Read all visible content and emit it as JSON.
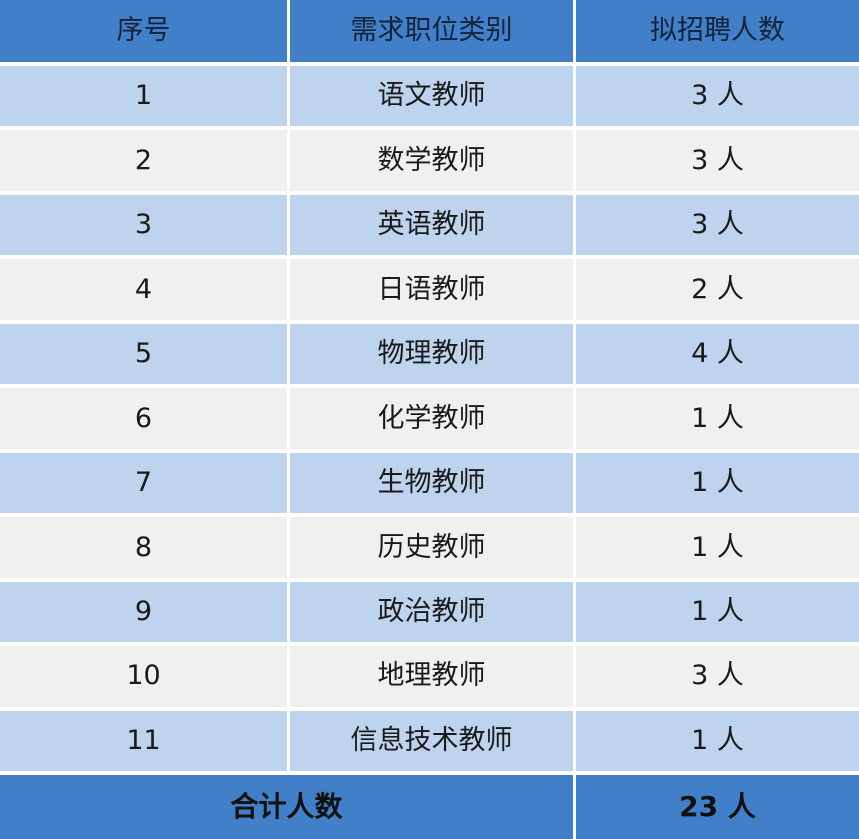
{
  "table": {
    "headers": [
      "序号",
      "需求职位类别",
      "拟招聘人数"
    ],
    "rows": [
      {
        "seq": "1",
        "category": "语文教师",
        "count": "3 人"
      },
      {
        "seq": "2",
        "category": "数学教师",
        "count": "3 人"
      },
      {
        "seq": "3",
        "category": "英语教师",
        "count": "3 人"
      },
      {
        "seq": "4",
        "category": "日语教师",
        "count": "2 人"
      },
      {
        "seq": "5",
        "category": "物理教师",
        "count": "4 人"
      },
      {
        "seq": "6",
        "category": "化学教师",
        "count": "1 人"
      },
      {
        "seq": "7",
        "category": "生物教师",
        "count": "1 人"
      },
      {
        "seq": "8",
        "category": "历史教师",
        "count": "1 人"
      },
      {
        "seq": "9",
        "category": "政治教师",
        "count": "1 人"
      },
      {
        "seq": "10",
        "category": "地理教师",
        "count": "3 人"
      },
      {
        "seq": "11",
        "category": "信息技术教师",
        "count": "1 人"
      }
    ],
    "footer": {
      "label": "合计人数",
      "value": "23 人"
    }
  },
  "colors": {
    "header_bg": "#4180C8",
    "footer_bg": "#4180C8",
    "row_blue": "#BDD3EE",
    "row_gray": "#F0F0EF",
    "gap": "#FFFFFF",
    "text": "#1A1A1A"
  }
}
